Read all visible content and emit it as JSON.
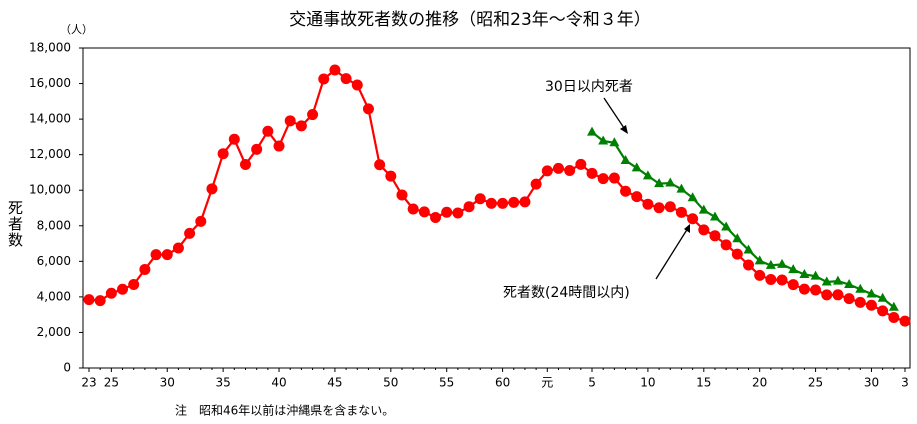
{
  "chart_data": {
    "type": "line",
    "title": "交通事故死者数の推移（昭和23年～令和３年）",
    "y_label": "死者数",
    "y_unit": "（人）",
    "note": "注　昭和46年以前は沖縄県を含まない。",
    "categories": [
      "23",
      null,
      "25",
      null,
      null,
      null,
      null,
      "30",
      null,
      null,
      null,
      null,
      "35",
      null,
      null,
      null,
      null,
      "40",
      null,
      null,
      null,
      null,
      "45",
      null,
      null,
      null,
      null,
      "50",
      null,
      null,
      null,
      null,
      "55",
      null,
      null,
      null,
      null,
      "60",
      null,
      null,
      null,
      "元",
      null,
      null,
      null,
      "5",
      null,
      null,
      null,
      null,
      "10",
      null,
      null,
      null,
      null,
      "15",
      null,
      null,
      null,
      null,
      "20",
      null,
      null,
      null,
      null,
      "25",
      null,
      null,
      null,
      null,
      "30",
      null,
      null,
      "3"
    ],
    "series": [
      {
        "name": "死者数(24時間以内)",
        "color": "#ff0000",
        "marker": "circle",
        "values": [
          3848,
          3790,
          4202,
          4429,
          4696,
          5544,
          6374,
          6379,
          6751,
          7575,
          8248,
          10079,
          12055,
          12865,
          11445,
          12301,
          13318,
          12484,
          13904,
          13618,
          14256,
          16257,
          16765,
          16278,
          15918,
          14574,
          11432,
          10792,
          9734,
          8945,
          8783,
          8466,
          8760,
          8719,
          9073,
          9520,
          9262,
          9261,
          9317,
          9347,
          10344,
          11086,
          11227,
          11109,
          11452,
          10945,
          10653,
          10684,
          9943,
          9642,
          9214,
          9012,
          9073,
          8757,
          8396,
          7768,
          7436,
          6927,
          6403,
          5796,
          5209,
          4979,
          4948,
          4691,
          4438,
          4388,
          4113,
          4117,
          3904,
          3694,
          3532,
          3215,
          2839,
          2636
        ]
      },
      {
        "name": "30日以内死者",
        "color": "#008000",
        "marker": "triangle",
        "values": [
          null,
          null,
          null,
          null,
          null,
          null,
          null,
          null,
          null,
          null,
          null,
          null,
          null,
          null,
          null,
          null,
          null,
          null,
          null,
          null,
          null,
          null,
          null,
          null,
          null,
          null,
          null,
          null,
          null,
          null,
          null,
          null,
          null,
          null,
          null,
          null,
          null,
          null,
          null,
          null,
          null,
          null,
          null,
          null,
          null,
          13269,
          12768,
          12670,
          11674,
          11254,
          10805,
          10372,
          10403,
          10060,
          9575,
          8877,
          8492,
          7931,
          7272,
          6639,
          6023,
          5772,
          5828,
          5535,
          5261,
          5165,
          4838,
          4885,
          4698,
          4431,
          4166,
          3920,
          3416,
          null
        ]
      }
    ],
    "ylim": [
      0,
      18000
    ],
    "yticks": [
      0,
      {
        "value": 2000,
        "label": "2,000"
      },
      {
        "value": 4000,
        "label": "4,000"
      },
      {
        "value": 6000,
        "label": "6,000"
      },
      {
        "value": 8000,
        "label": "8,000"
      },
      {
        "value": 10000,
        "label": "10,000"
      },
      {
        "value": 12000,
        "label": "12,000"
      },
      {
        "value": 14000,
        "label": "14,000"
      },
      {
        "value": 16000,
        "label": "16,000"
      },
      {
        "value": 18000,
        "label": "18,000"
      }
    ],
    "grid": false
  }
}
